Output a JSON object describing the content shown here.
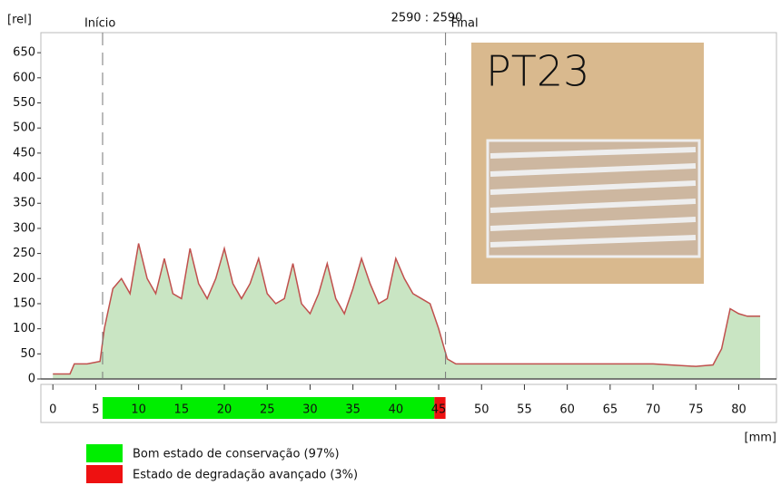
{
  "chart_data": {
    "type": "area",
    "header": "2590 : 2590",
    "y_unit_label": "[rel]",
    "x_unit_label": "[mm]",
    "markers": [
      {
        "label": "Início",
        "x": 5.8
      },
      {
        "label": "Final",
        "x": 45.8
      }
    ],
    "x": [
      0,
      2,
      2.5,
      4,
      5.5,
      6,
      7,
      8,
      9,
      10,
      11,
      12,
      13,
      14,
      15,
      16,
      17,
      18,
      19,
      20,
      21,
      22,
      23,
      24,
      25,
      26,
      27,
      28,
      29,
      30,
      31,
      32,
      33,
      34,
      35,
      36,
      37,
      38,
      39,
      40,
      41,
      42,
      43,
      44,
      45,
      46,
      47,
      50,
      60,
      70,
      75,
      77,
      78,
      79,
      80,
      81,
      82,
      82.5
    ],
    "values": [
      10,
      10,
      30,
      30,
      35,
      100,
      180,
      200,
      170,
      270,
      200,
      170,
      240,
      170,
      160,
      260,
      190,
      160,
      200,
      260,
      190,
      160,
      190,
      240,
      170,
      150,
      160,
      230,
      150,
      130,
      170,
      230,
      160,
      130,
      180,
      240,
      190,
      150,
      160,
      240,
      200,
      170,
      160,
      150,
      100,
      40,
      30,
      30,
      30,
      30,
      25,
      28,
      60,
      140,
      130,
      125,
      125,
      125
    ],
    "fill_color": "#c9e5c3",
    "line_color": "#c0504d",
    "xlim": [
      -1.4,
      84.4
    ],
    "ylim": [
      0,
      690
    ],
    "xticks": [
      0,
      5,
      10,
      15,
      20,
      25,
      30,
      35,
      40,
      45,
      50,
      55,
      60,
      65,
      70,
      75,
      80
    ],
    "yticks": [
      0,
      50,
      100,
      150,
      200,
      250,
      300,
      350,
      400,
      450,
      500,
      550,
      600,
      650
    ],
    "segments": [
      {
        "name": "Bom estado de conservação (97%)",
        "color": "#00ee00",
        "start": 5.8,
        "end": 44.5
      },
      {
        "name": "Estado de degradação avançado (3%)",
        "color": "#ee1111",
        "start": 44.5,
        "end": 45.8
      }
    ],
    "inset_text": "PT23"
  }
}
